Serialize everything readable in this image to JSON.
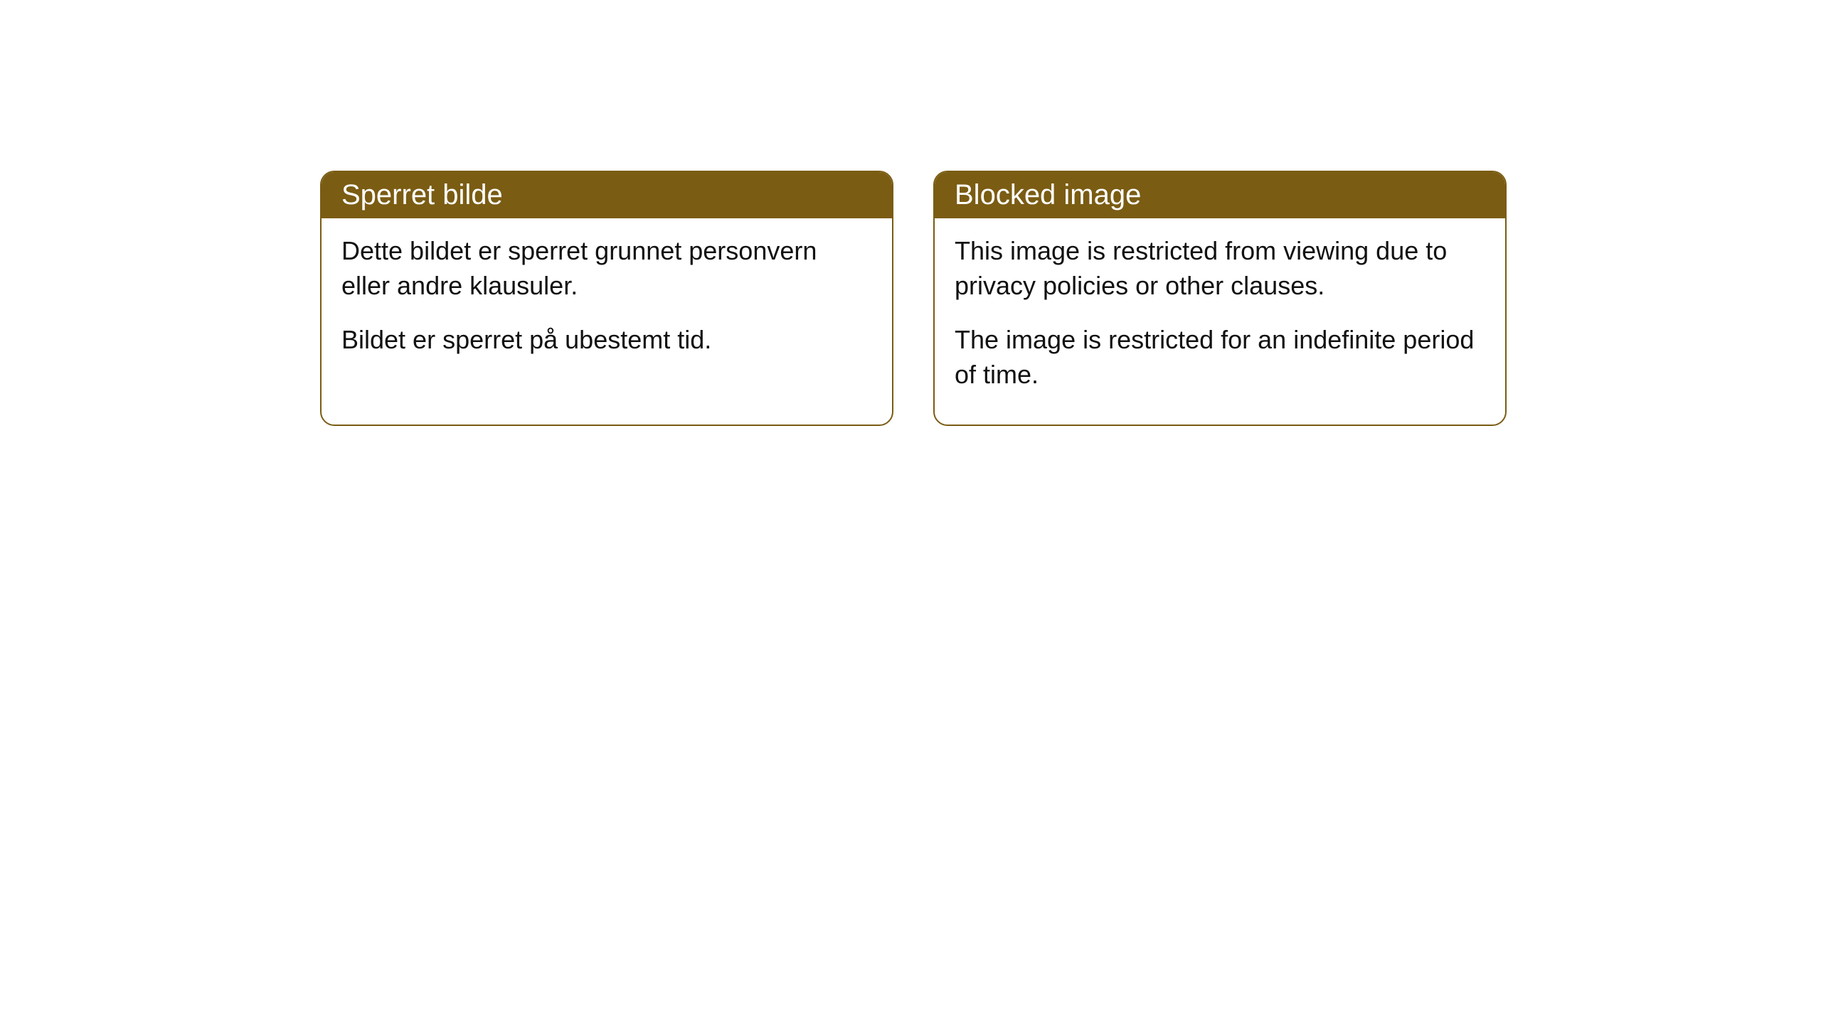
{
  "styling": {
    "header_bg_color": "#7a5c13",
    "header_text_color": "#ffffff",
    "border_color": "#7a5c13",
    "body_bg_color": "#ffffff",
    "body_text_color": "#111111",
    "border_radius": 20,
    "header_fontsize": 40,
    "body_fontsize": 36
  },
  "boxes": [
    {
      "title": "Sperret bilde",
      "para1": "Dette bildet er sperret grunnet personvern eller andre klausuler.",
      "para2": "Bildet er sperret på ubestemt tid."
    },
    {
      "title": "Blocked image",
      "para1": "This image is restricted from viewing due to privacy policies or other clauses.",
      "para2": "The image is restricted for an indefinite period of time."
    }
  ]
}
